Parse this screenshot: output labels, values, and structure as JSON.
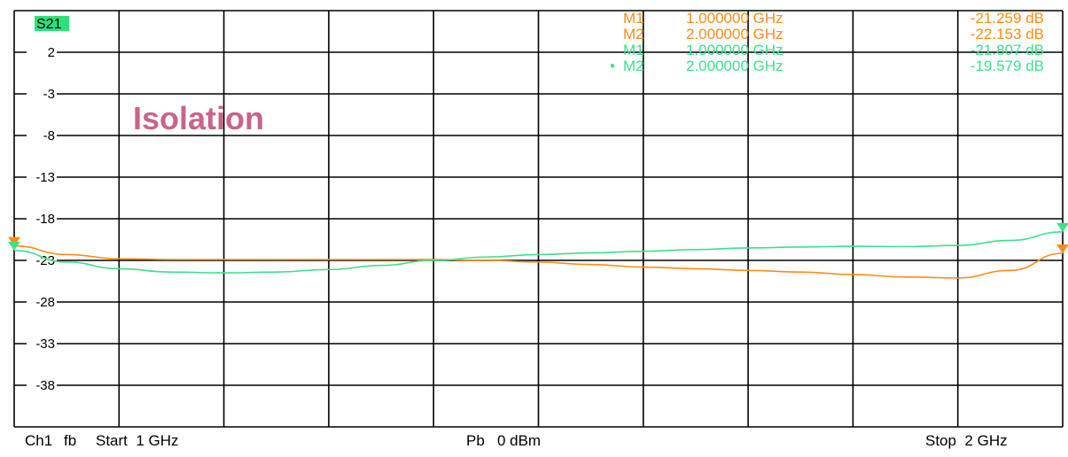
{
  "chart_data": {
    "type": "line",
    "trace_label": "S21",
    "annotation": "Isolation",
    "xlim": [
      1,
      2
    ],
    "ylim": [
      -43,
      7
    ],
    "yticks": [
      2,
      -3,
      -8,
      -13,
      -18,
      -23,
      -28,
      -33,
      -38
    ],
    "series": [
      {
        "color": "#ff8c1a",
        "x": [
          1.0,
          1.05,
          1.1,
          1.15,
          1.2,
          1.25,
          1.3,
          1.35,
          1.4,
          1.45,
          1.5,
          1.55,
          1.6,
          1.65,
          1.7,
          1.75,
          1.8,
          1.85,
          1.9,
          1.95,
          2.0
        ],
        "y": [
          -21.26,
          -22.3,
          -22.8,
          -22.9,
          -22.9,
          -22.9,
          -22.9,
          -22.9,
          -22.9,
          -23.0,
          -23.2,
          -23.5,
          -23.8,
          -24.0,
          -24.2,
          -24.4,
          -24.7,
          -25.0,
          -25.1,
          -24.2,
          -22.15
        ]
      },
      {
        "color": "#3ee08a",
        "x": [
          1.0,
          1.05,
          1.1,
          1.15,
          1.2,
          1.25,
          1.3,
          1.35,
          1.4,
          1.45,
          1.5,
          1.55,
          1.6,
          1.65,
          1.7,
          1.75,
          1.8,
          1.85,
          1.9,
          1.95,
          2.0
        ],
        "y": [
          -21.81,
          -23.2,
          -24.0,
          -24.4,
          -24.5,
          -24.4,
          -24.1,
          -23.6,
          -23.0,
          -22.6,
          -22.3,
          -22.1,
          -21.9,
          -21.7,
          -21.5,
          -21.4,
          -21.3,
          -21.35,
          -21.2,
          -20.6,
          -19.58
        ]
      }
    ],
    "marker_table": [
      {
        "name": "M1",
        "freq": "1.000000 GHz",
        "value": "-21.259 dB",
        "color": "#ff8c1a",
        "active": false
      },
      {
        "name": "M2",
        "freq": "2.000000 GHz",
        "value": "-22.153 dB",
        "color": "#ff8c1a",
        "active": false
      },
      {
        "name": "M1",
        "freq": "1.000000 GHz",
        "value": "-21.807 dB",
        "color": "#3ee08a",
        "active": false
      },
      {
        "name": "M2",
        "freq": "2.000000 GHz",
        "value": "-19.579 dB",
        "color": "#3ee08a",
        "active": true
      }
    ],
    "annotation_color": "#c8648c",
    "label_bg": "#2ee07a"
  },
  "footer": {
    "channel": "Ch1",
    "mode": "fb",
    "start": "Start  1 GHz",
    "power": "Pb   0 dBm",
    "stop": "Stop  2 GHz"
  }
}
